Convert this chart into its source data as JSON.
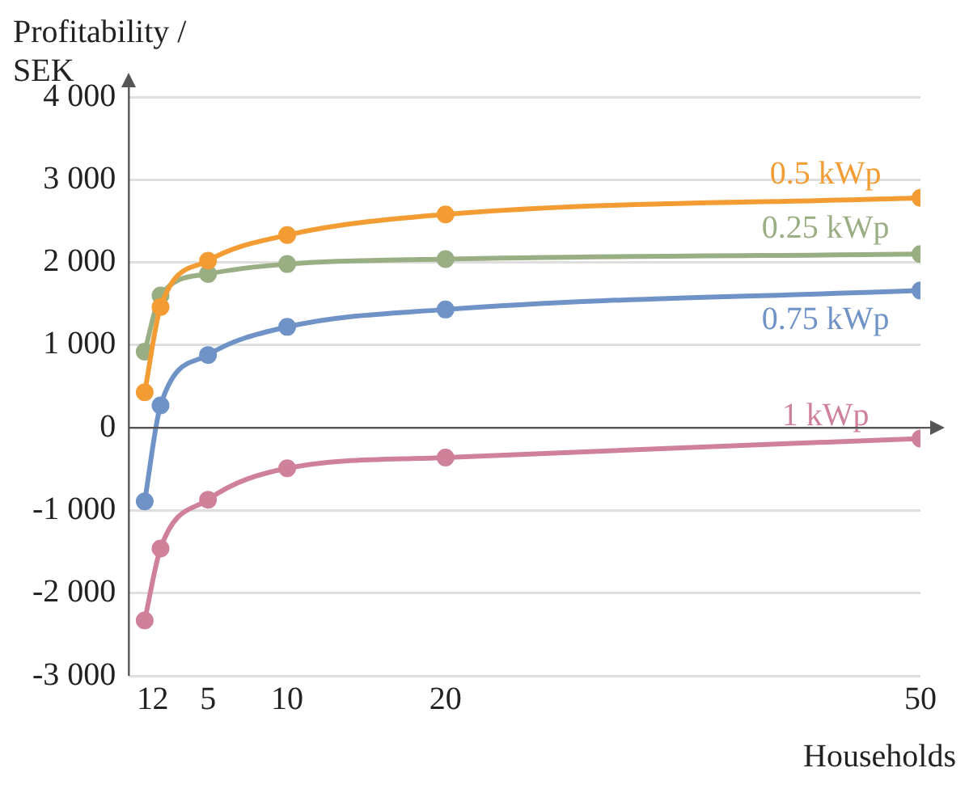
{
  "chart_data": {
    "type": "line",
    "ylabel": "Profitability / SEK",
    "xlabel": "Households",
    "x": [
      1,
      2,
      5,
      10,
      20,
      50
    ],
    "series": [
      {
        "name": "0.5 kWp",
        "color": "#f39c33",
        "values": [
          430,
          1460,
          2020,
          2330,
          2580,
          2780
        ]
      },
      {
        "name": "0.25 kWp",
        "color": "#9aae84",
        "values": [
          920,
          1600,
          1860,
          1980,
          2040,
          2100
        ]
      },
      {
        "name": "0.75 kWp",
        "color": "#6f93c6",
        "values": [
          -890,
          270,
          880,
          1220,
          1430,
          1660
        ]
      },
      {
        "name": "1 kWp",
        "color": "#d0819a",
        "values": [
          -2330,
          -1460,
          -870,
          -490,
          -360,
          -130
        ]
      }
    ],
    "xlim": [
      0,
      50
    ],
    "xticks": [
      1,
      2,
      5,
      10,
      20,
      50
    ],
    "ylim": [
      -3000,
      4000
    ],
    "yticks": [
      {
        "value": -3000,
        "label": "-3 000"
      },
      {
        "value": -2000,
        "label": "-2 000"
      },
      {
        "value": -1000,
        "label": "-1 000"
      },
      0,
      {
        "value": 1000,
        "label": "1 000"
      },
      {
        "value": 2000,
        "label": "2 000"
      },
      {
        "value": 3000,
        "label": "3 000"
      },
      {
        "value": 4000,
        "label": "4 000"
      }
    ],
    "grid": "y",
    "legend": false,
    "marker": "circle",
    "line_style": "solid"
  }
}
